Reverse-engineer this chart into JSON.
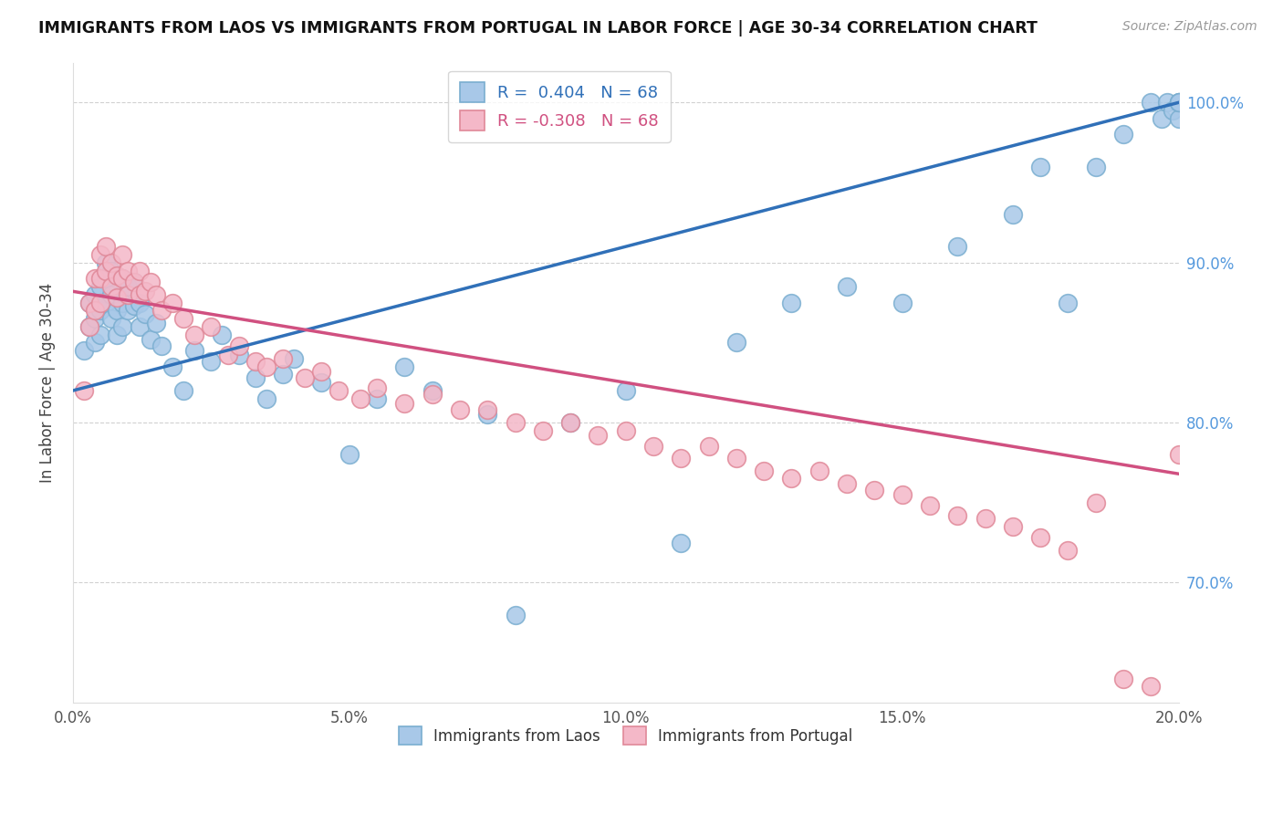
{
  "title": "IMMIGRANTS FROM LAOS VS IMMIGRANTS FROM PORTUGAL IN LABOR FORCE | AGE 30-34 CORRELATION CHART",
  "source": "Source: ZipAtlas.com",
  "ylabel": "In Labor Force | Age 30-34",
  "xlim": [
    0.0,
    0.2
  ],
  "ylim": [
    0.625,
    1.025
  ],
  "xticks": [
    0.0,
    0.05,
    0.1,
    0.15,
    0.2
  ],
  "xtick_labels": [
    "0.0%",
    "5.0%",
    "10.0%",
    "15.0%",
    "20.0%"
  ],
  "yticks": [
    0.7,
    0.8,
    0.9,
    1.0
  ],
  "ytick_labels": [
    "70.0%",
    "80.0%",
    "90.0%",
    "100.0%"
  ],
  "blue_color": "#a8c8e8",
  "blue_edge": "#7aaed0",
  "pink_color": "#f4b8c8",
  "pink_edge": "#e08898",
  "trend_blue": "#3070b8",
  "trend_pink": "#d05080",
  "blue_line_y0": 0.82,
  "blue_line_y1": 1.0,
  "pink_line_y0": 0.882,
  "pink_line_y1": 0.768,
  "legend_blue_label": "R =  0.404   N = 68",
  "legend_pink_label": "R = -0.308   N = 68",
  "blue_x": [
    0.002,
    0.003,
    0.003,
    0.004,
    0.004,
    0.004,
    0.005,
    0.005,
    0.005,
    0.006,
    0.006,
    0.006,
    0.007,
    0.007,
    0.007,
    0.008,
    0.008,
    0.009,
    0.009,
    0.009,
    0.01,
    0.01,
    0.011,
    0.011,
    0.012,
    0.012,
    0.013,
    0.014,
    0.015,
    0.016,
    0.018,
    0.02,
    0.022,
    0.025,
    0.027,
    0.03,
    0.033,
    0.035,
    0.038,
    0.04,
    0.045,
    0.05,
    0.055,
    0.06,
    0.065,
    0.075,
    0.08,
    0.09,
    0.1,
    0.11,
    0.12,
    0.13,
    0.14,
    0.15,
    0.16,
    0.17,
    0.175,
    0.18,
    0.185,
    0.19,
    0.195,
    0.197,
    0.198,
    0.199,
    0.2,
    0.2,
    0.2,
    0.2
  ],
  "blue_y": [
    0.845,
    0.875,
    0.86,
    0.88,
    0.865,
    0.85,
    0.885,
    0.87,
    0.855,
    0.9,
    0.89,
    0.875,
    0.895,
    0.88,
    0.865,
    0.87,
    0.855,
    0.89,
    0.875,
    0.86,
    0.885,
    0.87,
    0.888,
    0.873,
    0.875,
    0.86,
    0.868,
    0.852,
    0.862,
    0.848,
    0.835,
    0.82,
    0.845,
    0.838,
    0.855,
    0.842,
    0.828,
    0.815,
    0.83,
    0.84,
    0.825,
    0.78,
    0.815,
    0.835,
    0.82,
    0.805,
    0.68,
    0.8,
    0.82,
    0.725,
    0.85,
    0.875,
    0.885,
    0.875,
    0.91,
    0.93,
    0.96,
    0.875,
    0.96,
    0.98,
    1.0,
    0.99,
    1.0,
    0.995,
    1.0,
    0.99,
    1.0,
    1.0
  ],
  "pink_x": [
    0.002,
    0.003,
    0.003,
    0.004,
    0.004,
    0.005,
    0.005,
    0.005,
    0.006,
    0.006,
    0.007,
    0.007,
    0.008,
    0.008,
    0.009,
    0.009,
    0.01,
    0.01,
    0.011,
    0.012,
    0.012,
    0.013,
    0.014,
    0.015,
    0.016,
    0.018,
    0.02,
    0.022,
    0.025,
    0.028,
    0.03,
    0.033,
    0.035,
    0.038,
    0.042,
    0.045,
    0.048,
    0.052,
    0.055,
    0.06,
    0.065,
    0.07,
    0.075,
    0.08,
    0.085,
    0.09,
    0.095,
    0.1,
    0.105,
    0.11,
    0.115,
    0.12,
    0.125,
    0.13,
    0.135,
    0.14,
    0.145,
    0.15,
    0.155,
    0.16,
    0.165,
    0.17,
    0.175,
    0.18,
    0.185,
    0.19,
    0.195,
    0.2
  ],
  "pink_y": [
    0.82,
    0.86,
    0.875,
    0.89,
    0.87,
    0.905,
    0.89,
    0.875,
    0.91,
    0.895,
    0.9,
    0.885,
    0.892,
    0.878,
    0.905,
    0.89,
    0.895,
    0.88,
    0.888,
    0.895,
    0.88,
    0.882,
    0.888,
    0.88,
    0.87,
    0.875,
    0.865,
    0.855,
    0.86,
    0.842,
    0.848,
    0.838,
    0.835,
    0.84,
    0.828,
    0.832,
    0.82,
    0.815,
    0.822,
    0.812,
    0.818,
    0.808,
    0.808,
    0.8,
    0.795,
    0.8,
    0.792,
    0.795,
    0.785,
    0.778,
    0.785,
    0.778,
    0.77,
    0.765,
    0.77,
    0.762,
    0.758,
    0.755,
    0.748,
    0.742,
    0.74,
    0.735,
    0.728,
    0.72,
    0.75,
    0.64,
    0.635,
    0.78
  ]
}
